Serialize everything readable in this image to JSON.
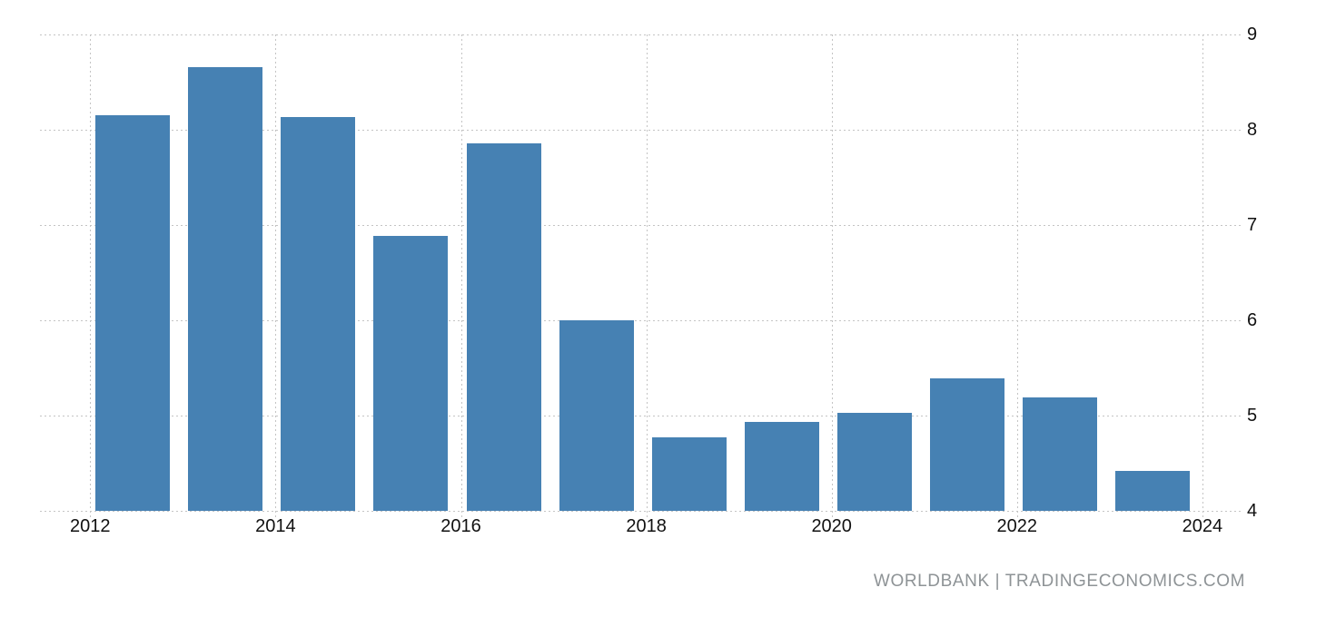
{
  "chart_data": {
    "type": "bar",
    "title": "",
    "xlabel": "",
    "ylabel": "",
    "categories": [
      "2012",
      "2013",
      "2014",
      "2015",
      "2016",
      "2017",
      "2018",
      "2019",
      "2020",
      "2021",
      "2022",
      "2023"
    ],
    "values": [
      8.15,
      8.66,
      8.13,
      6.89,
      7.86,
      6.0,
      4.77,
      4.93,
      5.03,
      5.39,
      5.19,
      4.42
    ],
    "ylim": [
      4,
      9
    ],
    "y_ticks": [
      9,
      8,
      7,
      6,
      5,
      4
    ],
    "x_tick_labels": [
      "2012",
      "2014",
      "2016",
      "2018",
      "2020",
      "2022",
      "2024"
    ],
    "grid": "dotted",
    "legend": false,
    "y_axis_side": "right",
    "bar_color": "#4681b3",
    "gridline_color": "#c4c4c4",
    "axis_label_color": "#111111"
  },
  "watermark": {
    "text": "WORLDBANK | TRADINGECONOMICS.COM",
    "color": "#8e9396"
  }
}
